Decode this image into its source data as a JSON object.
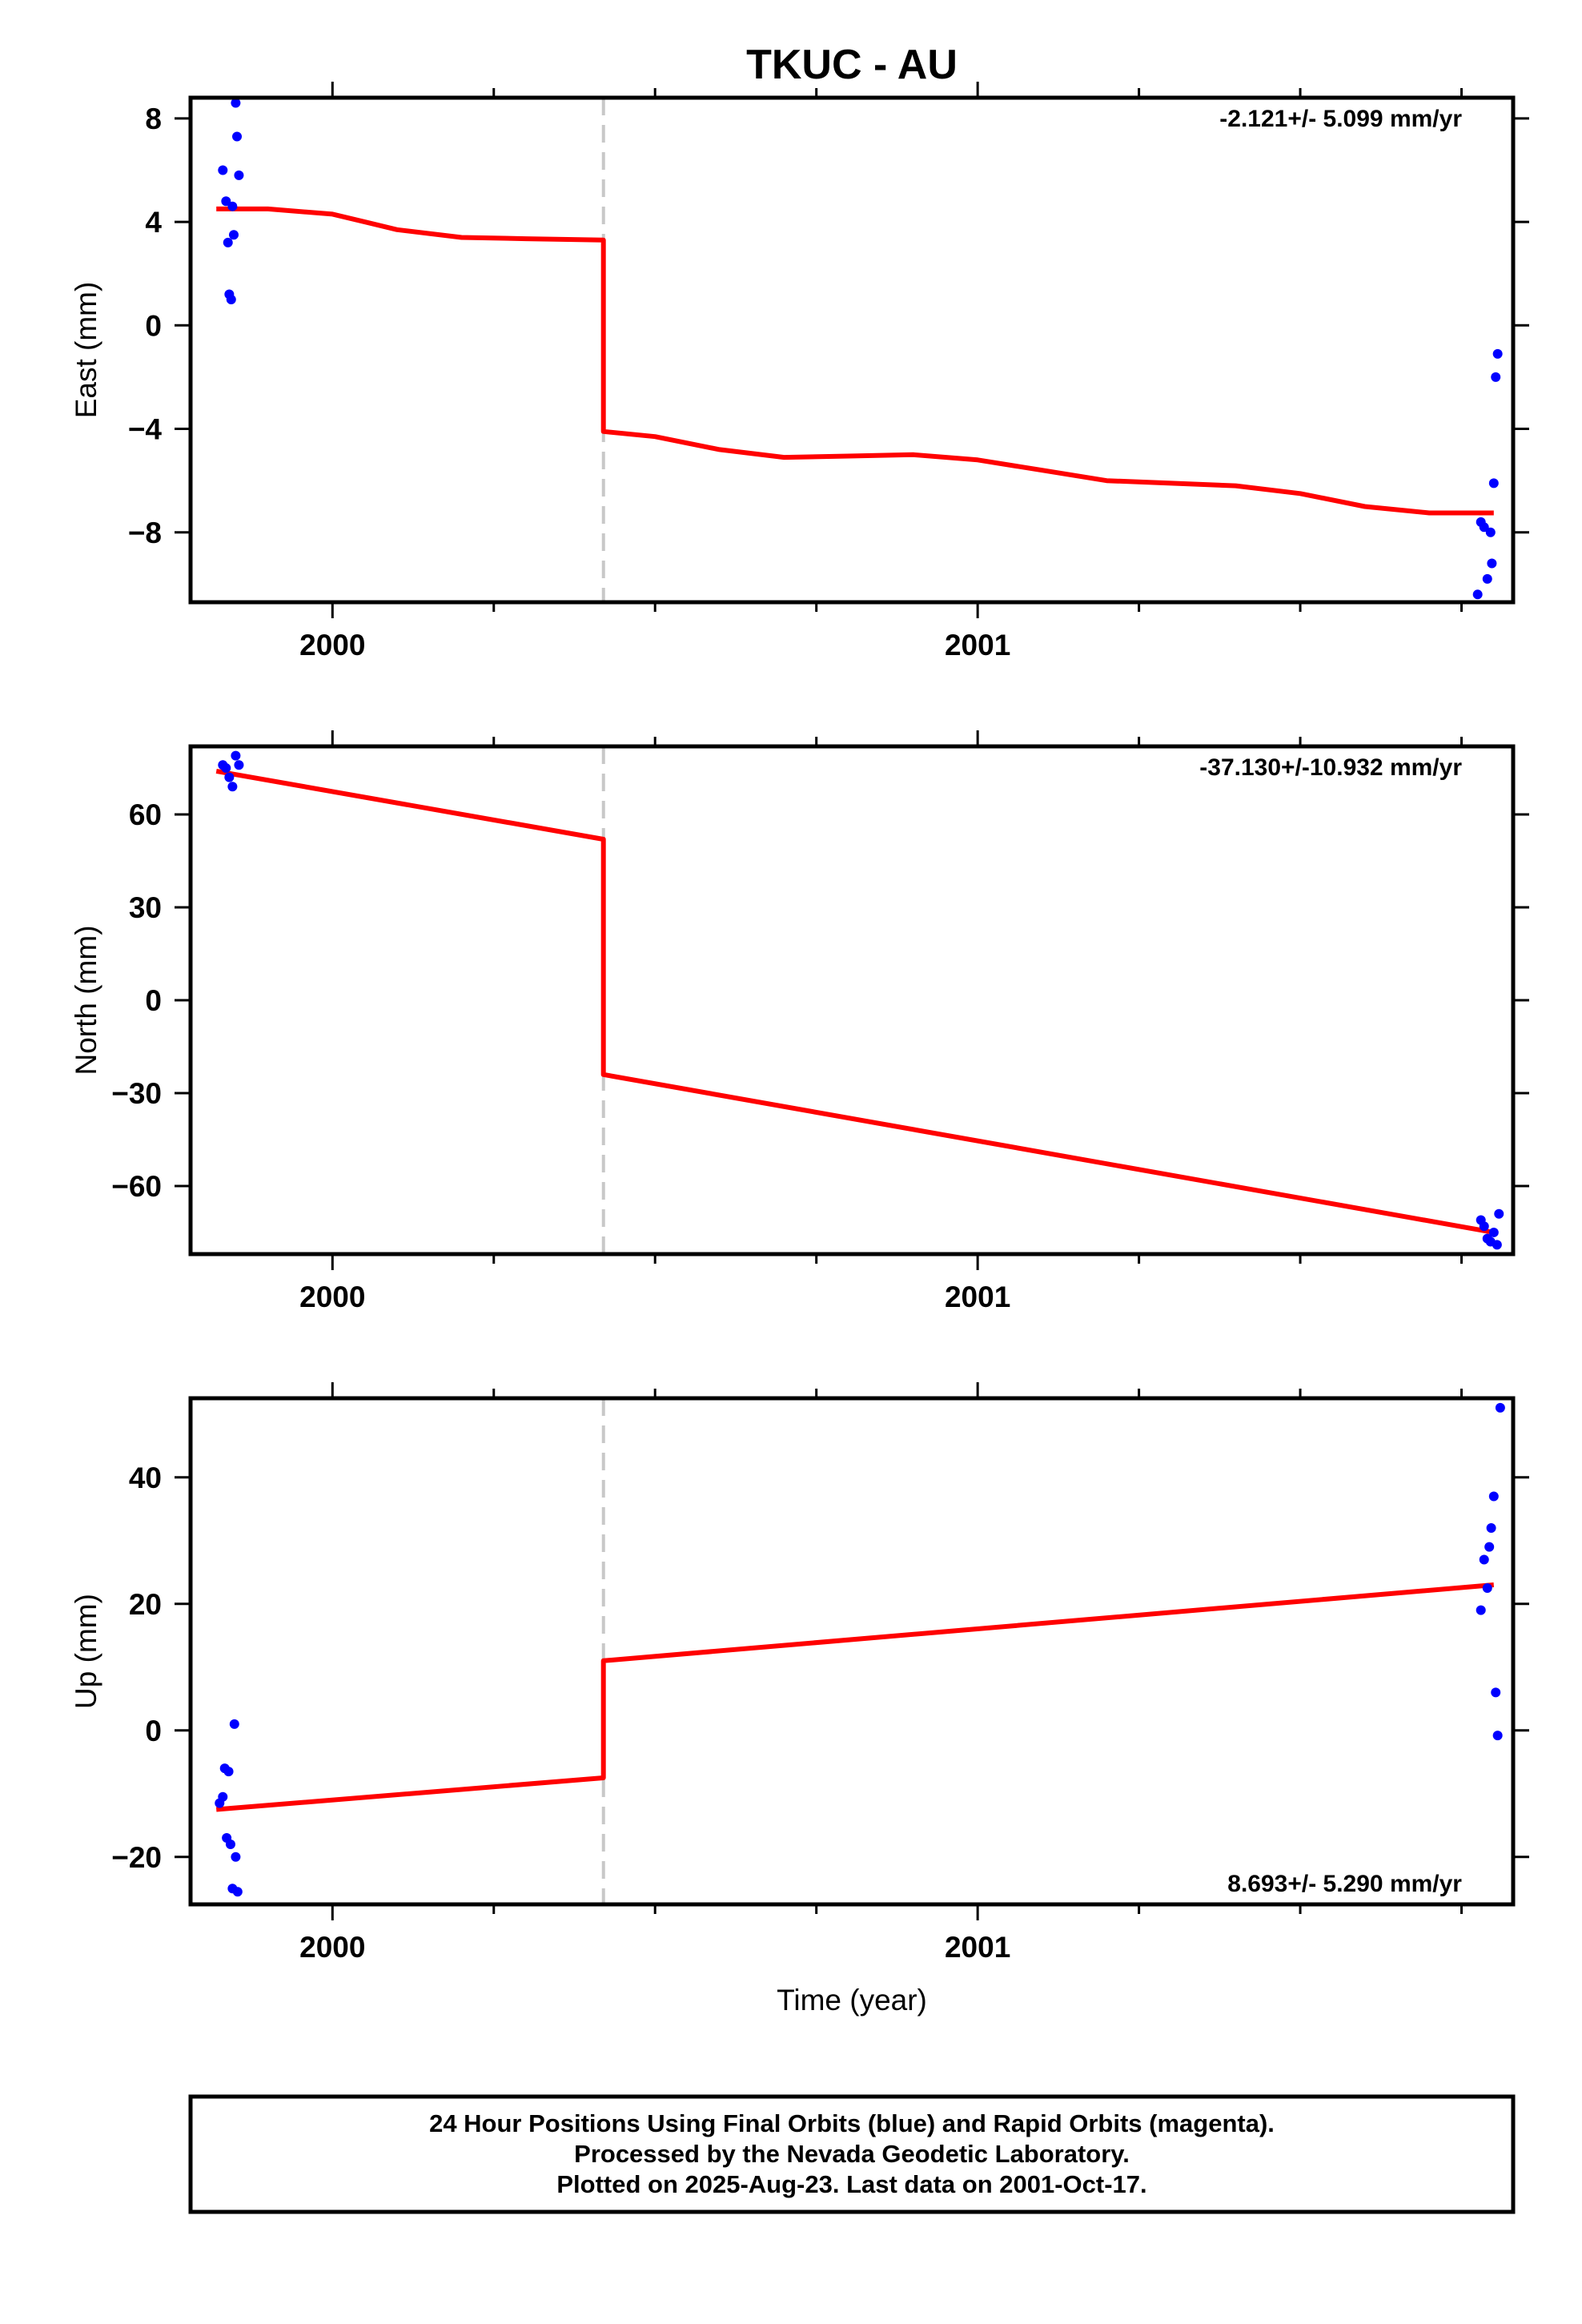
{
  "title": "TKUC - AU",
  "xlabel": "Time (year)",
  "colors": {
    "fit": "#ff0000",
    "points": "#0000ff",
    "step": "#c8c8c8",
    "frame": "#000000"
  },
  "footer": {
    "line1": "24 Hour Positions Using Final Orbits (blue) and Rapid Orbits (magenta).",
    "line2": "Processed by the Nevada Geodetic Laboratory.",
    "line3": "Plotted on 2025-Aug-23. Last data on 2001-Oct-17."
  },
  "chart_data": [
    {
      "type": "scatter",
      "ylabel": "East (mm)",
      "rate_label": "-2.121+/- 5.099 mm/yr",
      "rate_position": "top-right",
      "xlim": [
        1999.78,
        2001.83
      ],
      "ylim": [
        -10.7,
        8.8
      ],
      "xticks": [
        2000,
        2001
      ],
      "yticks": [
        8,
        4,
        0,
        -4,
        -8
      ],
      "ytick_labels": [
        "8",
        "4",
        "0",
        "−4",
        "−8"
      ],
      "step_epoch": 2000.42,
      "points": [
        [
          1999.83,
          6.0
        ],
        [
          1999.835,
          4.8
        ],
        [
          1999.838,
          3.2
        ],
        [
          1999.84,
          1.2
        ],
        [
          1999.843,
          1.0
        ],
        [
          1999.845,
          4.6
        ],
        [
          1999.847,
          3.5
        ],
        [
          1999.85,
          8.6
        ],
        [
          1999.852,
          7.3
        ],
        [
          1999.855,
          5.8
        ],
        [
          2001.775,
          -10.4
        ],
        [
          2001.78,
          -7.6
        ],
        [
          2001.785,
          -7.8
        ],
        [
          2001.79,
          -9.8
        ],
        [
          2001.795,
          -8.0
        ],
        [
          2001.797,
          -9.2
        ],
        [
          2001.8,
          -6.1
        ],
        [
          2001.803,
          -2.0
        ],
        [
          2001.806,
          -1.1
        ]
      ],
      "model": [
        [
          1999.82,
          4.5
        ],
        [
          1999.9,
          4.5
        ],
        [
          2000.0,
          4.3
        ],
        [
          2000.05,
          4.0
        ],
        [
          2000.1,
          3.7
        ],
        [
          2000.2,
          3.4
        ],
        [
          2000.3,
          3.35
        ],
        [
          2000.42,
          3.3
        ],
        [
          2000.42,
          -4.1
        ],
        [
          2000.5,
          -4.3
        ],
        [
          2000.6,
          -4.8
        ],
        [
          2000.7,
          -5.1
        ],
        [
          2000.8,
          -5.05
        ],
        [
          2000.9,
          -5.0
        ],
        [
          2001.0,
          -5.2
        ],
        [
          2001.1,
          -5.6
        ],
        [
          2001.2,
          -6.0
        ],
        [
          2001.3,
          -6.1
        ],
        [
          2001.4,
          -6.2
        ],
        [
          2001.5,
          -6.5
        ],
        [
          2001.6,
          -7.0
        ],
        [
          2001.7,
          -7.25
        ],
        [
          2001.8,
          -7.25
        ]
      ]
    },
    {
      "type": "scatter",
      "ylabel": "North (mm)",
      "rate_label": "-37.130+/-10.932 mm/yr",
      "rate_position": "top-right",
      "xlim": [
        1999.78,
        2001.83
      ],
      "ylim": [
        -82,
        82
      ],
      "xticks": [
        2000,
        2001
      ],
      "yticks": [
        60,
        30,
        0,
        -30,
        -60
      ],
      "ytick_labels": [
        "60",
        "30",
        "0",
        "−30",
        "−60"
      ],
      "step_epoch": 2000.42,
      "points": [
        [
          1999.83,
          76
        ],
        [
          1999.835,
          75
        ],
        [
          1999.84,
          72
        ],
        [
          1999.845,
          69
        ],
        [
          1999.85,
          79
        ],
        [
          1999.855,
          76
        ],
        [
          2001.78,
          -71
        ],
        [
          2001.785,
          -73
        ],
        [
          2001.79,
          -77
        ],
        [
          2001.795,
          -78
        ],
        [
          2001.8,
          -75
        ],
        [
          2001.805,
          -79
        ],
        [
          2001.808,
          -69
        ]
      ],
      "model": [
        [
          1999.82,
          74
        ],
        [
          2000.42,
          52
        ],
        [
          2000.42,
          -24
        ],
        [
          2001.8,
          -75
        ]
      ]
    },
    {
      "type": "scatter",
      "ylabel": "Up (mm)",
      "rate_label": "8.693+/- 5.290 mm/yr",
      "rate_position": "bottom-right",
      "xlim": [
        1999.78,
        2001.83
      ],
      "ylim": [
        -27.5,
        52.5
      ],
      "xticks": [
        2000,
        2001
      ],
      "yticks": [
        40,
        20,
        0,
        -20
      ],
      "ytick_labels": [
        "40",
        "20",
        "0",
        "−20"
      ],
      "step_epoch": 2000.42,
      "points": [
        [
          1999.825,
          -11.5
        ],
        [
          1999.83,
          -10.5
        ],
        [
          1999.833,
          -6
        ],
        [
          1999.836,
          -17
        ],
        [
          1999.839,
          -6.5
        ],
        [
          1999.842,
          -18
        ],
        [
          1999.845,
          -25
        ],
        [
          1999.848,
          1
        ],
        [
          1999.85,
          -20
        ],
        [
          1999.853,
          -25.5
        ],
        [
          2001.78,
          19
        ],
        [
          2001.785,
          27
        ],
        [
          2001.79,
          22.5
        ],
        [
          2001.793,
          29
        ],
        [
          2001.796,
          32
        ],
        [
          2001.8,
          37
        ],
        [
          2001.803,
          6
        ],
        [
          2001.806,
          -0.8
        ],
        [
          2001.81,
          51
        ]
      ],
      "model": [
        [
          1999.82,
          -12.5
        ],
        [
          2000.42,
          -7.5
        ],
        [
          2000.42,
          11
        ],
        [
          2001.8,
          23
        ]
      ]
    }
  ]
}
